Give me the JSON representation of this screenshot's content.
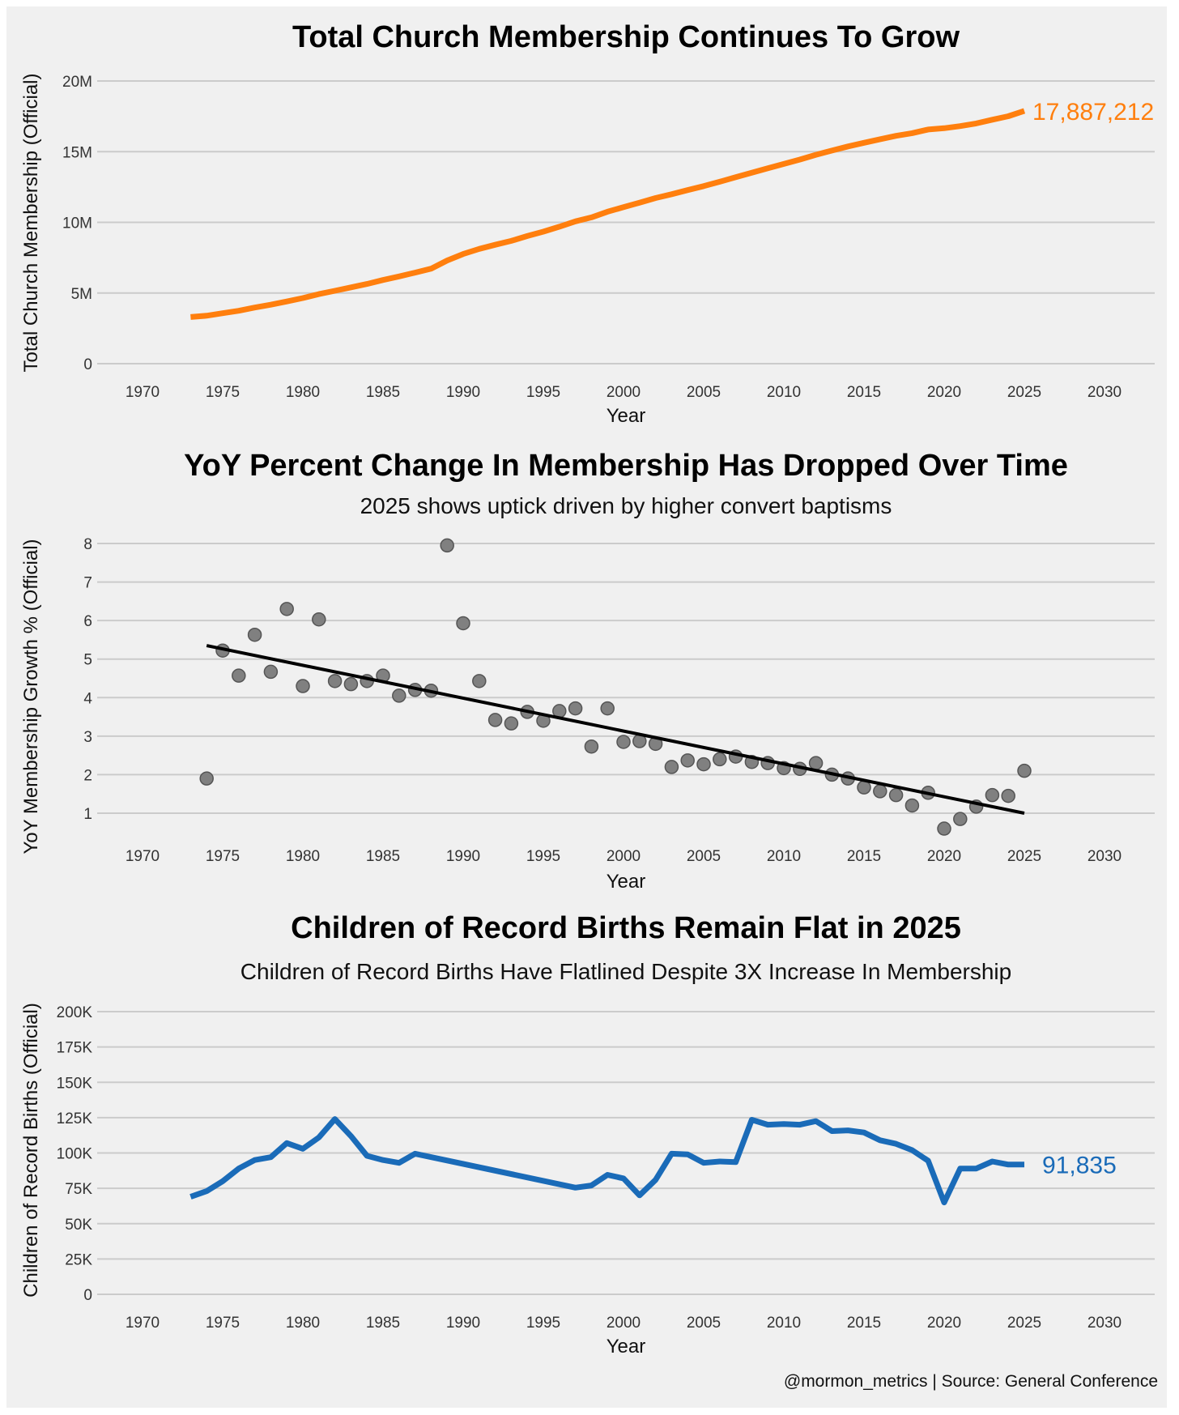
{
  "colors": {
    "background": "#f0f0f0",
    "membership": "#ff7f0e",
    "births": "#1a6bb8",
    "scatter": "#808080",
    "trend": "#000000"
  },
  "footer": {
    "credit": "@mormon_metrics | Source: General Conference"
  },
  "chart_data": [
    {
      "type": "line",
      "title": "Total Church Membership Continues To Grow",
      "xlabel": "Year",
      "ylabel": "Total Church Membership (Official)",
      "xlim": [
        1965,
        2035
      ],
      "ylim": [
        0,
        20000000
      ],
      "xticks": [
        "1970",
        "1975",
        "1980",
        "1985",
        "1990",
        "1995",
        "2000",
        "2005",
        "2010",
        "2015",
        "2020",
        "2025",
        "2030"
      ],
      "yticks": [
        {
          "v": 0,
          "label": "0"
        },
        {
          "v": 5000000,
          "label": "5M"
        },
        {
          "v": 10000000,
          "label": "10M"
        },
        {
          "v": 15000000,
          "label": "15M"
        },
        {
          "v": 20000000,
          "label": "20M"
        }
      ],
      "grid": true,
      "end_label": "17,887,212",
      "x": [
        1973,
        1974,
        1975,
        1976,
        1977,
        1978,
        1979,
        1980,
        1981,
        1982,
        1983,
        1984,
        1985,
        1986,
        1987,
        1988,
        1989,
        1990,
        1991,
        1992,
        1993,
        1994,
        1995,
        1996,
        1997,
        1998,
        1999,
        2000,
        2001,
        2002,
        2003,
        2004,
        2005,
        2006,
        2007,
        2008,
        2009,
        2010,
        2011,
        2012,
        2013,
        2014,
        2015,
        2016,
        2017,
        2018,
        2019,
        2020,
        2021,
        2022,
        2023,
        2024,
        2025
      ],
      "y": [
        3300000,
        3390000,
        3570000,
        3740000,
        3970000,
        4170000,
        4400000,
        4640000,
        4920000,
        5160000,
        5400000,
        5640000,
        5920000,
        6170000,
        6440000,
        6720000,
        7300000,
        7760000,
        8120000,
        8410000,
        8690000,
        9030000,
        9340000,
        9690000,
        10070000,
        10350000,
        10750000,
        11070000,
        11390000,
        11720000,
        11990000,
        12280000,
        12560000,
        12870000,
        13190000,
        13510000,
        13820000,
        14130000,
        14440000,
        14780000,
        15080000,
        15370000,
        15630000,
        15880000,
        16120000,
        16310000,
        16570000,
        16660000,
        16810000,
        17000000,
        17260000,
        17510000,
        17887212
      ]
    },
    {
      "type": "scatter",
      "title": "YoY Percent Change In Membership Has Dropped Over Time",
      "subtitle": "2025 shows uptick driven by higher convert baptisms",
      "xlabel": "Year",
      "ylabel": "YoY Membership Growth % (Official)",
      "xlim": [
        1965,
        2035
      ],
      "ylim": [
        1,
        8
      ],
      "xticks": [
        "1970",
        "1975",
        "1980",
        "1985",
        "1990",
        "1995",
        "2000",
        "2005",
        "2010",
        "2015",
        "2020",
        "2025",
        "2030"
      ],
      "yticks": [
        {
          "v": 1,
          "label": "1"
        },
        {
          "v": 2,
          "label": "2"
        },
        {
          "v": 3,
          "label": "3"
        },
        {
          "v": 4,
          "label": "4"
        },
        {
          "v": 5,
          "label": "5"
        },
        {
          "v": 6,
          "label": "6"
        },
        {
          "v": 7,
          "label": "7"
        },
        {
          "v": 8,
          "label": "8"
        }
      ],
      "grid": true,
      "x": [
        1974,
        1975,
        1976,
        1977,
        1978,
        1979,
        1980,
        1981,
        1982,
        1983,
        1984,
        1985,
        1986,
        1987,
        1988,
        1989,
        1990,
        1991,
        1992,
        1993,
        1994,
        1995,
        1996,
        1997,
        1998,
        1999,
        2000,
        2001,
        2002,
        2003,
        2004,
        2005,
        2006,
        2007,
        2008,
        2009,
        2010,
        2011,
        2012,
        2013,
        2014,
        2015,
        2016,
        2017,
        2018,
        2019,
        2020,
        2021,
        2022,
        2023,
        2024,
        2025
      ],
      "y": [
        1.9,
        5.22,
        4.57,
        5.63,
        4.67,
        6.3,
        4.3,
        6.03,
        4.43,
        4.35,
        4.43,
        4.57,
        4.05,
        4.2,
        4.18,
        7.95,
        5.93,
        4.43,
        3.42,
        3.33,
        3.63,
        3.4,
        3.65,
        3.72,
        2.73,
        3.72,
        2.85,
        2.87,
        2.8,
        2.2,
        2.37,
        2.27,
        2.4,
        2.47,
        2.33,
        2.3,
        2.17,
        2.15,
        2.3,
        2.0,
        1.9,
        1.67,
        1.57,
        1.47,
        1.2,
        1.53,
        0.6,
        0.85,
        1.17,
        1.47,
        1.45,
        2.1
      ],
      "trendline": {
        "x": [
          1974,
          2025
        ],
        "y": [
          5.35,
          1.0
        ]
      }
    },
    {
      "type": "line",
      "title": "Children of Record Births Remain Flat in 2025",
      "subtitle": "Children of Record Births Have Flatlined Despite 3X Increase In Membership",
      "xlabel": "Year",
      "ylabel": "Children of Record Births (Official)",
      "xlim": [
        1965,
        2035
      ],
      "ylim": [
        0,
        200000
      ],
      "xticks": [
        "1970",
        "1975",
        "1980",
        "1985",
        "1990",
        "1995",
        "2000",
        "2005",
        "2010",
        "2015",
        "2020",
        "2025",
        "2030"
      ],
      "yticks": [
        {
          "v": 0,
          "label": "0"
        },
        {
          "v": 25000,
          "label": "25K"
        },
        {
          "v": 50000,
          "label": "50K"
        },
        {
          "v": 75000,
          "label": "75K"
        },
        {
          "v": 100000,
          "label": "100K"
        },
        {
          "v": 125000,
          "label": "125K"
        },
        {
          "v": 150000,
          "label": "150K"
        },
        {
          "v": 175000,
          "label": "175K"
        },
        {
          "v": 200000,
          "label": "200K"
        }
      ],
      "grid": true,
      "end_label": "91,835",
      "x": [
        1973,
        1974,
        1975,
        1976,
        1977,
        1978,
        1979,
        1980,
        1981,
        1982,
        1983,
        1984,
        1985,
        1986,
        1987,
        1997,
        1998,
        1999,
        2000,
        2001,
        2002,
        2003,
        2004,
        2005,
        2006,
        2007,
        2008,
        2009,
        2010,
        2011,
        2012,
        2013,
        2014,
        2015,
        2016,
        2017,
        2018,
        2019,
        2020,
        2021,
        2022,
        2023,
        2024,
        2025
      ],
      "y": [
        69000,
        73000,
        80000,
        89000,
        95000,
        97000,
        107000,
        103000,
        111000,
        124000,
        112000,
        98000,
        95000,
        93000,
        99500,
        75500,
        77000,
        84500,
        82000,
        70000,
        81000,
        99500,
        99000,
        93000,
        94000,
        93500,
        123500,
        120000,
        120500,
        120000,
        122500,
        115500,
        116000,
        114500,
        109000,
        106500,
        102000,
        94500,
        65000,
        89000,
        89000,
        94000,
        91800,
        91835
      ]
    }
  ]
}
